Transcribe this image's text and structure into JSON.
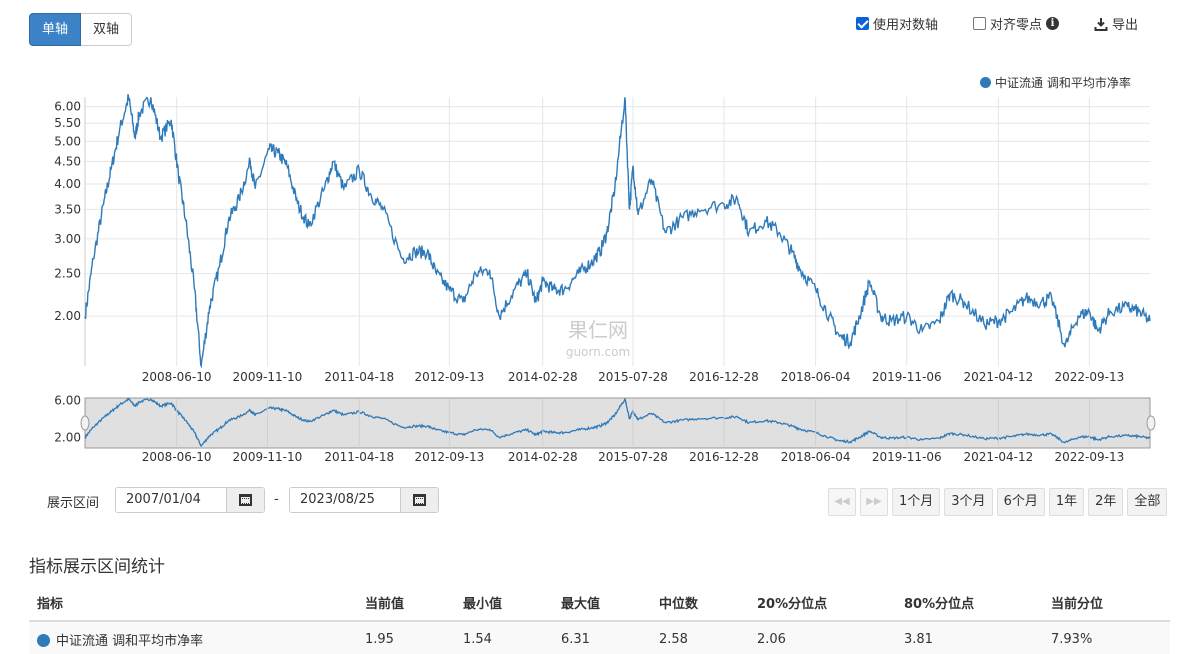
{
  "toolbar": {
    "axis_tabs": [
      {
        "label": "单轴",
        "active": true
      },
      {
        "label": "双轴",
        "active": false
      }
    ],
    "log_axis": {
      "label": "使用对数轴",
      "checked": true
    },
    "align_zero": {
      "label": "对齐零点",
      "checked": false
    },
    "export_label": "导出"
  },
  "legend": {
    "label": "中证流通 调和平均市净率",
    "color": "#2f7ab9"
  },
  "watermark": {
    "cn": "果仁网",
    "en": "guorn.com"
  },
  "date_range": {
    "label": "展示区间",
    "start": "2007/01/04",
    "end": "2023/08/25",
    "separator": "-"
  },
  "range_buttons": [
    "1个月",
    "3个月",
    "6个月",
    "1年",
    "2年",
    "全部"
  ],
  "stats": {
    "title": "指标展示区间统计",
    "headers": [
      "指标",
      "当前值",
      "最小值",
      "最大值",
      "中位数",
      "20%分位点",
      "80%分位点",
      "当前分位"
    ],
    "row": {
      "name": "中证流通 调和平均市净率",
      "values": [
        "1.95",
        "1.54",
        "6.31",
        "2.58",
        "2.06",
        "3.81",
        "7.93%"
      ]
    }
  },
  "chart_data": {
    "type": "line",
    "log_scale": true,
    "grid": true,
    "legend_position": "top-right",
    "series": [
      {
        "name": "中证流通 调和平均市净率",
        "color": "#2f7ab9",
        "points": [
          [
            "2007/01/04",
            2.0
          ],
          [
            "2007/02/20",
            2.7
          ],
          [
            "2007/04/20",
            3.6
          ],
          [
            "2007/06/01",
            4.3
          ],
          [
            "2007/07/20",
            5.3
          ],
          [
            "2007/09/10",
            6.3
          ],
          [
            "2007/10/16",
            5.1
          ],
          [
            "2007/11/10",
            5.8
          ],
          [
            "2008/01/15",
            6.3
          ],
          [
            "2008/03/10",
            5.1
          ],
          [
            "2008/05/10",
            5.6
          ],
          [
            "2008/06/20",
            4.2
          ],
          [
            "2008/08/01",
            3.3
          ],
          [
            "2008/09/20",
            2.3
          ],
          [
            "2008/10/28",
            1.54
          ],
          [
            "2008/12/15",
            2.1
          ],
          [
            "2009/02/10",
            2.6
          ],
          [
            "2009/04/01",
            3.3
          ],
          [
            "2009/06/01",
            3.7
          ],
          [
            "2009/08/04",
            4.5
          ],
          [
            "2009/09/01",
            3.9
          ],
          [
            "2009/11/20",
            4.8
          ],
          [
            "2010/01/10",
            4.7
          ],
          [
            "2010/03/01",
            4.4
          ],
          [
            "2010/05/01",
            3.6
          ],
          [
            "2010/07/05",
            3.2
          ],
          [
            "2010/10/01",
            3.9
          ],
          [
            "2010/11/20",
            4.5
          ],
          [
            "2011/01/20",
            3.9
          ],
          [
            "2011/04/18",
            4.3
          ],
          [
            "2011/06/20",
            3.8
          ],
          [
            "2011/09/01",
            3.5
          ],
          [
            "2011/12/20",
            2.7
          ],
          [
            "2012/03/01",
            2.8
          ],
          [
            "2012/05/10",
            2.8
          ],
          [
            "2012/07/01",
            2.5
          ],
          [
            "2012/09/13",
            2.3
          ],
          [
            "2012/11/30",
            2.15
          ],
          [
            "2013/02/10",
            2.5
          ],
          [
            "2013/05/01",
            2.55
          ],
          [
            "2013/06/25",
            2.0
          ],
          [
            "2013/09/20",
            2.3
          ],
          [
            "2013/12/01",
            2.5
          ],
          [
            "2014/01/20",
            2.15
          ],
          [
            "2014/02/28",
            2.4
          ],
          [
            "2014/05/01",
            2.3
          ],
          [
            "2014/07/01",
            2.3
          ],
          [
            "2014/09/20",
            2.5
          ],
          [
            "2014/12/01",
            2.65
          ],
          [
            "2015/01/20",
            2.8
          ],
          [
            "2015/03/01",
            3.1
          ],
          [
            "2015/04/15",
            3.9
          ],
          [
            "2015/06/12",
            6.3
          ],
          [
            "2015/07/08",
            3.5
          ],
          [
            "2015/07/28",
            4.4
          ],
          [
            "2015/08/26",
            3.4
          ],
          [
            "2015/11/10",
            4.1
          ],
          [
            "2016/01/28",
            3.1
          ],
          [
            "2016/04/15",
            3.3
          ],
          [
            "2016/08/01",
            3.5
          ],
          [
            "2016/12/28",
            3.6
          ],
          [
            "2017/03/15",
            3.7
          ],
          [
            "2017/05/20",
            3.1
          ],
          [
            "2017/08/20",
            3.3
          ],
          [
            "2017/11/10",
            3.1
          ],
          [
            "2018/01/20",
            2.8
          ],
          [
            "2018/03/10",
            2.55
          ],
          [
            "2018/06/04",
            2.3
          ],
          [
            "2018/08/20",
            2.0
          ],
          [
            "2018/10/18",
            1.8
          ],
          [
            "2018/12/20",
            1.75
          ],
          [
            "2019/02/10",
            2.0
          ],
          [
            "2019/04/08",
            2.4
          ],
          [
            "2019/06/10",
            2.0
          ],
          [
            "2019/08/10",
            1.95
          ],
          [
            "2019/11/06",
            2.0
          ],
          [
            "2020/02/03",
            1.85
          ],
          [
            "2020/05/10",
            1.95
          ],
          [
            "2020/07/10",
            2.25
          ],
          [
            "2020/09/30",
            2.15
          ],
          [
            "2021/01/20",
            1.92
          ],
          [
            "2021/04/12",
            1.95
          ],
          [
            "2021/07/01",
            2.05
          ],
          [
            "2021/09/15",
            2.2
          ],
          [
            "2021/12/10",
            2.15
          ],
          [
            "2022/02/10",
            2.2
          ],
          [
            "2022/04/26",
            1.7
          ],
          [
            "2022/07/10",
            2.0
          ],
          [
            "2022/09/13",
            2.05
          ],
          [
            "2022/10/31",
            1.85
          ],
          [
            "2023/01/10",
            2.05
          ],
          [
            "2023/04/20",
            2.1
          ],
          [
            "2023/06/20",
            2.05
          ],
          [
            "2023/08/25",
            1.95
          ]
        ]
      }
    ],
    "x_ticks": [
      "2008-06-10",
      "2009-11-10",
      "2011-04-18",
      "2012-09-13",
      "2014-02-28",
      "2015-07-28",
      "2016-12-28",
      "2018-06-04",
      "2019-11-06",
      "2021-04-12",
      "2022-09-13"
    ],
    "y_ticks": [
      "2.00",
      "2.50",
      "3.00",
      "3.50",
      "4.00",
      "4.50",
      "5.00",
      "5.50",
      "6.00"
    ],
    "x_range": [
      "2007/01/04",
      "2023/08/25"
    ],
    "ylim": [
      1.54,
      6.31
    ],
    "navigator": {
      "y_ticks": [
        "6.00",
        "2.00"
      ]
    }
  }
}
